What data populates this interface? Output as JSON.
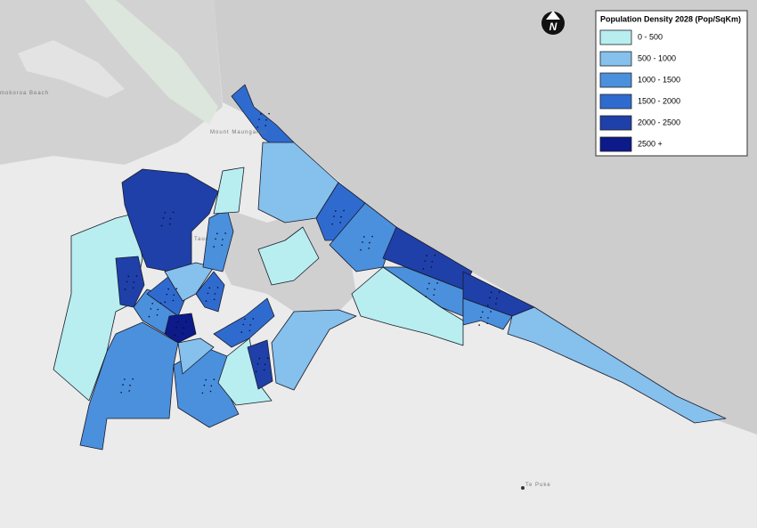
{
  "map": {
    "legend": {
      "title": "Population Density 2028 (Pop/SqKm)",
      "items": [
        {
          "label": "0 - 500",
          "color": "#b8eef0"
        },
        {
          "label": "500 - 1000",
          "color": "#86c0ec"
        },
        {
          "label": "1000 - 1500",
          "color": "#4b90dc"
        },
        {
          "label": "1500 - 2000",
          "color": "#2f6bcf"
        },
        {
          "label": "2000 - 2500",
          "color": "#1f40a8"
        },
        {
          "label": "2500 +",
          "color": "#0c1a8a"
        }
      ]
    },
    "north_arrow": "N",
    "places": [
      "mokoroa Beach",
      "Mount Maunganui",
      "Taur",
      "Te Puke"
    ]
  }
}
